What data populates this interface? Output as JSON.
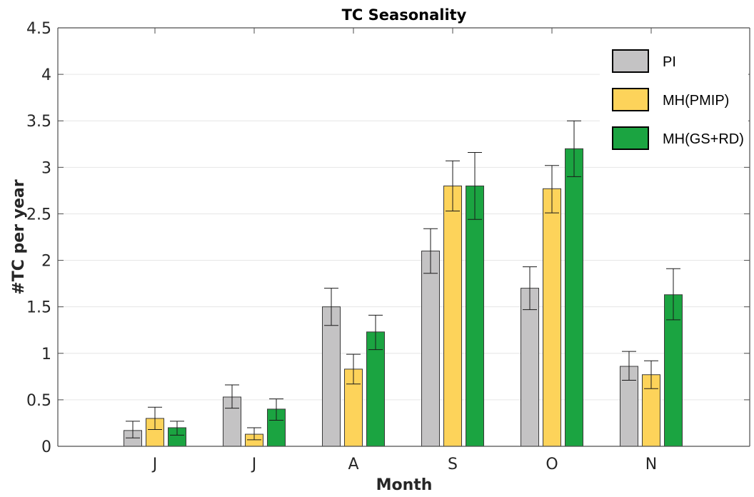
{
  "chart_data": {
    "type": "bar",
    "title": "TC Seasonality",
    "xlabel": "Month",
    "ylabel": "#TC per year",
    "categories": [
      "J",
      "J",
      "A",
      "S",
      "O",
      "N"
    ],
    "ylim": [
      0,
      4.5
    ],
    "yticks": [
      0,
      0.5,
      1,
      1.5,
      2,
      2.5,
      3,
      3.5,
      4,
      4.5
    ],
    "ytick_labels": [
      "0",
      "0.5",
      "1",
      "1.5",
      "2",
      "2.5",
      "3",
      "3.5",
      "4",
      "4.5"
    ],
    "grid": "horizontal",
    "legend_position": "top-right",
    "series": [
      {
        "name": "PI",
        "color": "#c4c3c4",
        "values": [
          0.17,
          0.53,
          1.5,
          2.1,
          1.7,
          0.86
        ],
        "error_low": [
          0.09,
          0.41,
          1.3,
          1.86,
          1.47,
          0.71
        ],
        "error_high": [
          0.27,
          0.66,
          1.7,
          2.34,
          1.93,
          1.02
        ]
      },
      {
        "name": "MH(PMIP)",
        "color": "#fdd35a",
        "values": [
          0.3,
          0.13,
          0.83,
          2.8,
          2.77,
          0.77
        ],
        "error_low": [
          0.18,
          0.07,
          0.67,
          2.53,
          2.51,
          0.62
        ],
        "error_high": [
          0.42,
          0.2,
          0.99,
          3.07,
          3.02,
          0.92
        ]
      },
      {
        "name": "MH(GS+RD)",
        "color": "#1ba441",
        "values": [
          0.2,
          0.4,
          1.23,
          2.8,
          3.2,
          1.63
        ],
        "error_low": [
          0.12,
          0.28,
          1.04,
          2.44,
          2.9,
          1.36
        ],
        "error_high": [
          0.27,
          0.51,
          1.41,
          3.16,
          3.5,
          1.91
        ]
      }
    ]
  }
}
